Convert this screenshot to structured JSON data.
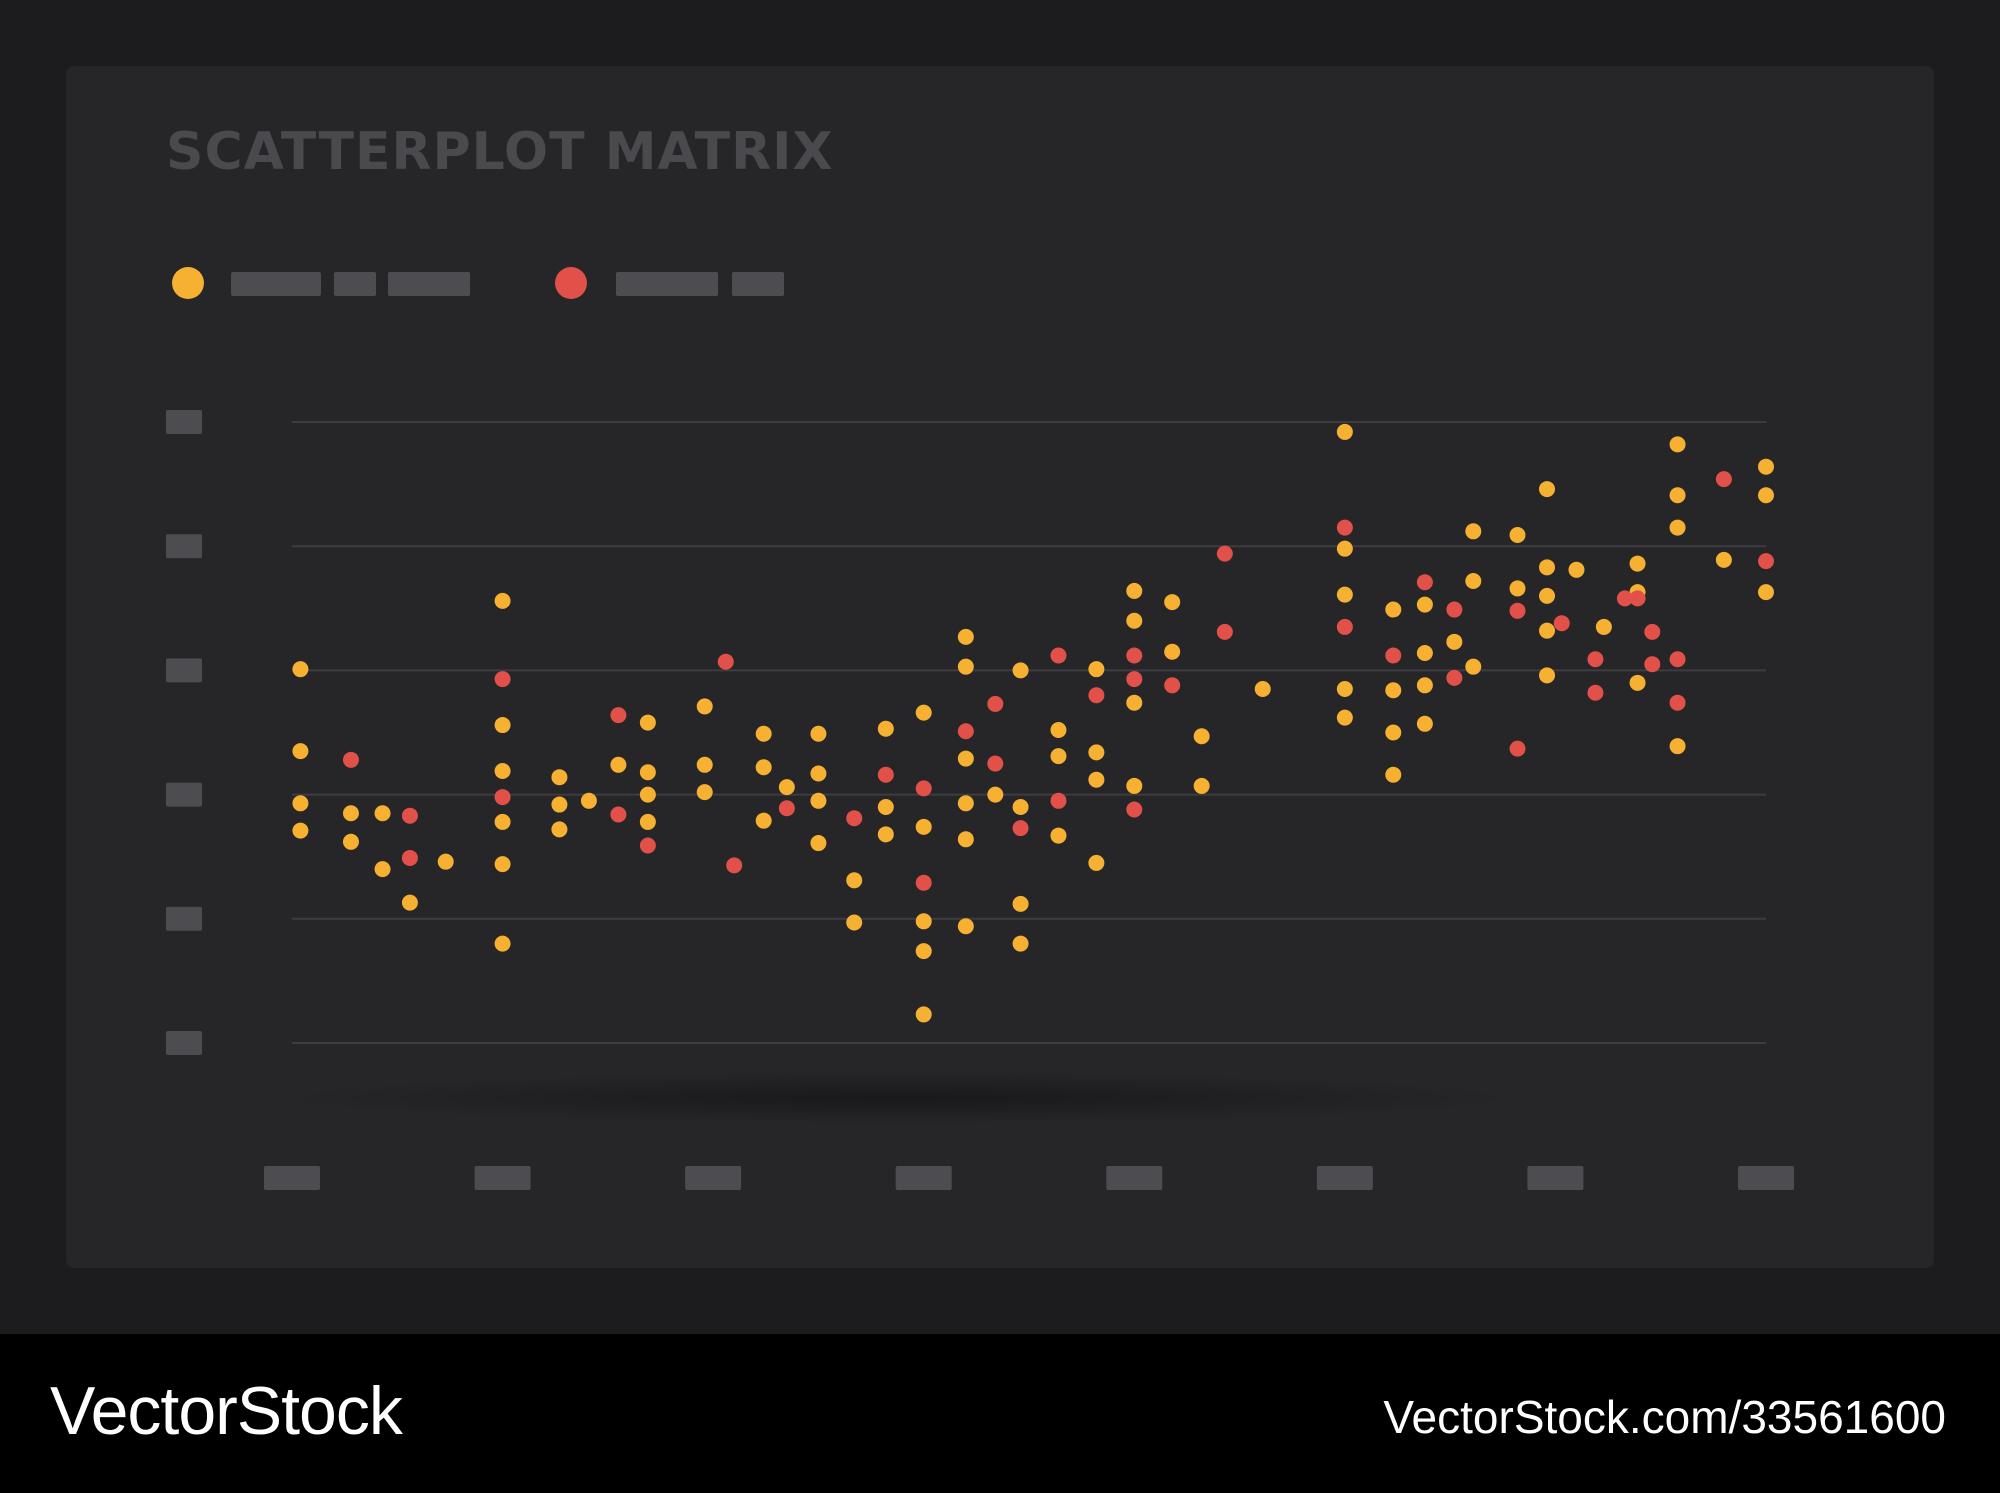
{
  "title": "SCATTERPLOT MATRIX",
  "colors": {
    "background": "#1c1c1e",
    "card": "#262528",
    "series_a": "#f6b132",
    "series_b": "#e2504a",
    "gridline": "#3d3c40",
    "placeholder": "#4d4c50",
    "title_text": "#4a494d"
  },
  "legend": {
    "placement": "top-left",
    "items": [
      {
        "series": "a",
        "label_placeholder_segments": 3
      },
      {
        "series": "b",
        "label_placeholder_segments": 2
      }
    ]
  },
  "chart_data": {
    "type": "scatter",
    "grid": true,
    "xlim": [
      0,
      7
    ],
    "ylim": [
      0,
      5
    ],
    "x_tick_count": 8,
    "y_tick_count": 6,
    "x_tick_labels_placeholder": true,
    "y_tick_labels_placeholder": true,
    "series": [
      {
        "key": "a",
        "points": [
          [
            0.04,
            3.01
          ],
          [
            0.04,
            2.35
          ],
          [
            0.04,
            1.93
          ],
          [
            0.04,
            1.71
          ],
          [
            0.28,
            1.85
          ],
          [
            0.28,
            1.62
          ],
          [
            0.43,
            1.85
          ],
          [
            0.43,
            1.4
          ],
          [
            0.56,
            1.13
          ],
          [
            0.73,
            1.46
          ],
          [
            1.0,
            3.56
          ],
          [
            1.0,
            2.56
          ],
          [
            1.0,
            2.19
          ],
          [
            1.0,
            1.78
          ],
          [
            1.0,
            1.44
          ],
          [
            1.0,
            0.8
          ],
          [
            1.27,
            2.14
          ],
          [
            1.27,
            1.92
          ],
          [
            1.27,
            1.72
          ],
          [
            1.41,
            1.95
          ],
          [
            1.55,
            2.24
          ],
          [
            1.69,
            2.58
          ],
          [
            1.69,
            2.18
          ],
          [
            1.69,
            2.0
          ],
          [
            1.69,
            1.78
          ],
          [
            1.96,
            2.71
          ],
          [
            1.96,
            2.24
          ],
          [
            1.96,
            2.02
          ],
          [
            2.24,
            2.49
          ],
          [
            2.24,
            2.22
          ],
          [
            2.24,
            1.79
          ],
          [
            2.35,
            2.06
          ],
          [
            2.5,
            2.49
          ],
          [
            2.5,
            2.17
          ],
          [
            2.5,
            1.95
          ],
          [
            2.5,
            1.61
          ],
          [
            2.67,
            1.31
          ],
          [
            2.67,
            0.97
          ],
          [
            2.82,
            2.53
          ],
          [
            2.82,
            1.9
          ],
          [
            2.82,
            1.68
          ],
          [
            3.0,
            2.66
          ],
          [
            3.0,
            1.74
          ],
          [
            3.0,
            0.98
          ],
          [
            3.0,
            0.74
          ],
          [
            3.0,
            0.23
          ],
          [
            3.2,
            3.27
          ],
          [
            3.2,
            3.03
          ],
          [
            3.2,
            2.29
          ],
          [
            3.2,
            1.93
          ],
          [
            3.2,
            1.64
          ],
          [
            3.2,
            0.94
          ],
          [
            3.34,
            2.0
          ],
          [
            3.46,
            3.0
          ],
          [
            3.46,
            1.9
          ],
          [
            3.46,
            1.12
          ],
          [
            3.46,
            0.8
          ],
          [
            3.64,
            2.52
          ],
          [
            3.64,
            2.31
          ],
          [
            3.64,
            1.67
          ],
          [
            3.82,
            3.01
          ],
          [
            3.82,
            2.34
          ],
          [
            3.82,
            2.12
          ],
          [
            3.82,
            1.45
          ],
          [
            4.0,
            3.64
          ],
          [
            4.0,
            3.4
          ],
          [
            4.0,
            2.74
          ],
          [
            4.0,
            2.07
          ],
          [
            4.18,
            3.55
          ],
          [
            4.18,
            3.15
          ],
          [
            4.32,
            2.47
          ],
          [
            4.32,
            2.07
          ],
          [
            4.61,
            2.85
          ],
          [
            5.0,
            4.92
          ],
          [
            5.0,
            3.98
          ],
          [
            5.0,
            3.61
          ],
          [
            5.0,
            2.85
          ],
          [
            5.0,
            2.62
          ],
          [
            5.23,
            3.49
          ],
          [
            5.23,
            2.84
          ],
          [
            5.23,
            2.5
          ],
          [
            5.23,
            2.16
          ],
          [
            5.38,
            3.53
          ],
          [
            5.38,
            3.14
          ],
          [
            5.38,
            2.88
          ],
          [
            5.38,
            2.57
          ],
          [
            5.52,
            3.23
          ],
          [
            5.61,
            4.12
          ],
          [
            5.61,
            3.72
          ],
          [
            5.61,
            3.03
          ],
          [
            5.82,
            4.09
          ],
          [
            5.82,
            3.66
          ],
          [
            5.96,
            4.46
          ],
          [
            5.96,
            3.83
          ],
          [
            5.96,
            3.6
          ],
          [
            5.96,
            3.32
          ],
          [
            5.96,
            2.96
          ],
          [
            6.1,
            3.81
          ],
          [
            6.23,
            3.35
          ],
          [
            6.39,
            3.86
          ],
          [
            6.39,
            3.63
          ],
          [
            6.39,
            2.9
          ],
          [
            6.58,
            4.82
          ],
          [
            6.58,
            4.41
          ],
          [
            6.58,
            4.15
          ],
          [
            6.58,
            2.39
          ],
          [
            6.8,
            3.89
          ],
          [
            7.0,
            4.64
          ],
          [
            7.0,
            4.41
          ],
          [
            7.0,
            3.63
          ]
        ]
      },
      {
        "key": "b",
        "points": [
          [
            0.28,
            2.28
          ],
          [
            0.56,
            1.83
          ],
          [
            0.56,
            1.49
          ],
          [
            1.0,
            2.93
          ],
          [
            1.0,
            1.98
          ],
          [
            1.55,
            2.64
          ],
          [
            1.55,
            1.84
          ],
          [
            1.69,
            1.59
          ],
          [
            2.06,
            3.07
          ],
          [
            2.1,
            1.43
          ],
          [
            2.35,
            1.89
          ],
          [
            2.67,
            1.81
          ],
          [
            2.82,
            2.16
          ],
          [
            3.0,
            2.05
          ],
          [
            3.0,
            1.29
          ],
          [
            3.2,
            2.51
          ],
          [
            3.34,
            2.73
          ],
          [
            3.34,
            2.25
          ],
          [
            3.46,
            1.73
          ],
          [
            3.64,
            3.12
          ],
          [
            3.64,
            1.95
          ],
          [
            3.82,
            2.8
          ],
          [
            4.0,
            3.12
          ],
          [
            4.0,
            2.93
          ],
          [
            4.0,
            1.88
          ],
          [
            4.18,
            2.88
          ],
          [
            4.43,
            3.94
          ],
          [
            4.43,
            3.31
          ],
          [
            5.0,
            4.15
          ],
          [
            5.0,
            3.35
          ],
          [
            5.23,
            3.12
          ],
          [
            5.38,
            3.71
          ],
          [
            5.52,
            3.49
          ],
          [
            5.52,
            2.94
          ],
          [
            5.82,
            3.48
          ],
          [
            5.82,
            2.37
          ],
          [
            6.03,
            3.38
          ],
          [
            6.19,
            3.09
          ],
          [
            6.19,
            2.82
          ],
          [
            6.33,
            3.58
          ],
          [
            6.39,
            3.58
          ],
          [
            6.46,
            3.31
          ],
          [
            6.46,
            3.05
          ],
          [
            6.58,
            3.09
          ],
          [
            6.58,
            2.74
          ],
          [
            6.8,
            4.54
          ],
          [
            7.0,
            3.88
          ]
        ]
      }
    ]
  },
  "footer": {
    "brand": "VectorStock",
    "url": "VectorStock.com/33561600"
  }
}
